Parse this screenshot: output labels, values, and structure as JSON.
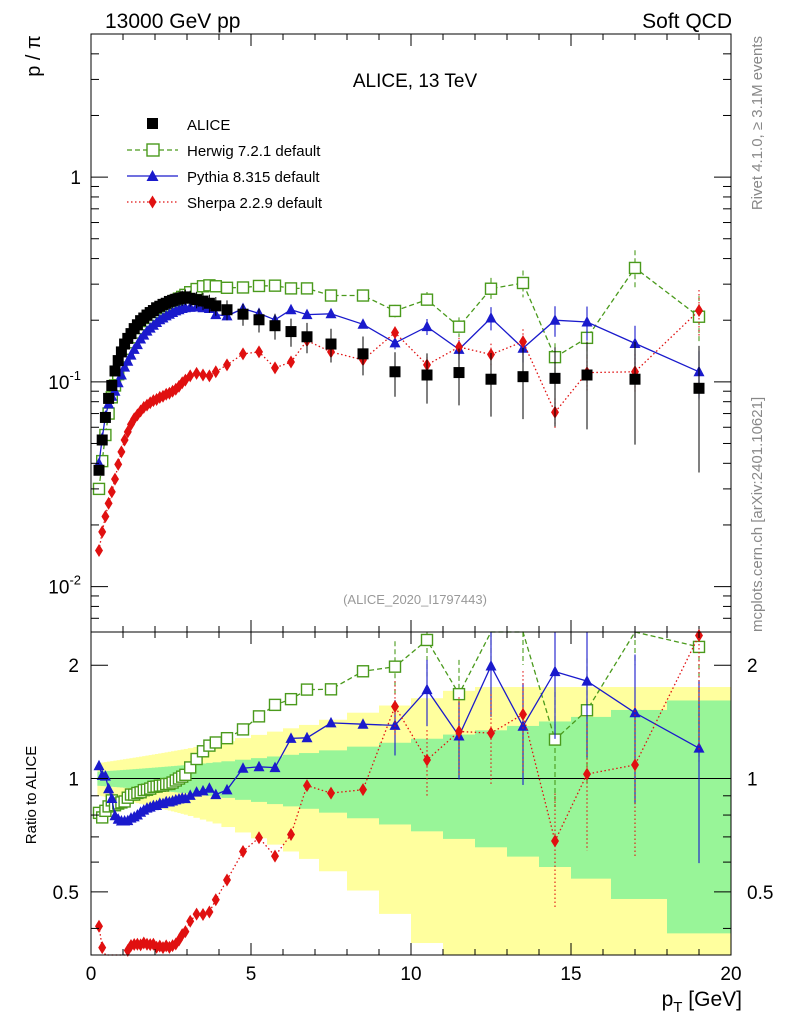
{
  "header": {
    "left": "13000 GeV pp",
    "right": "Soft QCD"
  },
  "side_labels": {
    "rivet": "Rivet 4.1.0, ≥ 3.1M events",
    "mcplots": "mcplots.cern.ch [arXiv:2401.10621]"
  },
  "chart_data": {
    "type": "scatter",
    "title": "ALICE, 13 TeV",
    "analysis": "(ALICE_2020_I1797443)",
    "xlabel": "p_T [GeV]",
    "xlabel_main": "p",
    "xlabel_sub": "T",
    "xlabel_unit": " [GeV]",
    "ylabel": "p / π",
    "ratio_ylabel": "Ratio to ALICE",
    "xlim": [
      0,
      20
    ],
    "ylim": [
      0.006,
      5
    ],
    "ratio_ylim": [
      0.34,
      2.45
    ],
    "xticks": [
      "0",
      "5",
      "10",
      "15",
      "20"
    ],
    "yticks": [
      "10^-2",
      "10^-1",
      "1"
    ],
    "ratio_yticks": [
      "0.5",
      "1",
      "2"
    ],
    "colors": {
      "alice": "#000000",
      "herwig": "#4a9a1c",
      "pythia": "#1a1acc",
      "sherpa": "#e01010",
      "band_green": "#98f598",
      "band_yellow": "#ffff9e"
    },
    "legend": [
      "ALICE",
      "Herwig 7.2.1 default",
      "Pythia 8.315 default",
      "Sherpa 2.2.9 default"
    ],
    "x": [
      0.25,
      0.35,
      0.45,
      0.55,
      0.65,
      0.75,
      0.85,
      0.95,
      1.05,
      1.15,
      1.25,
      1.35,
      1.45,
      1.55,
      1.65,
      1.75,
      1.85,
      1.95,
      2.05,
      2.15,
      2.25,
      2.35,
      2.45,
      2.55,
      2.65,
      2.75,
      2.85,
      2.95,
      3.1,
      3.3,
      3.5,
      3.7,
      3.9,
      4.25,
      4.75,
      5.25,
      5.75,
      6.25,
      6.75,
      7.5,
      8.5,
      9.5,
      10.5,
      11.5,
      12.5,
      13.5,
      14.5,
      15.5,
      17,
      19
    ],
    "series": [
      {
        "name": "ALICE",
        "values": [
          0.037,
          0.052,
          0.067,
          0.083,
          0.096,
          0.113,
          0.127,
          0.14,
          0.153,
          0.163,
          0.172,
          0.182,
          0.19,
          0.199,
          0.205,
          0.212,
          0.218,
          0.223,
          0.23,
          0.234,
          0.239,
          0.242,
          0.247,
          0.25,
          0.253,
          0.255,
          0.257,
          0.26,
          0.256,
          0.252,
          0.248,
          0.242,
          0.235,
          0.225,
          0.214,
          0.201,
          0.188,
          0.176,
          0.166,
          0.153,
          0.137,
          0.112,
          0.108,
          0.111,
          0.103,
          0.106,
          0.104,
          0.108,
          0.103,
          0.093
        ]
      },
      {
        "name": "Herwig 7.2.1 default",
        "values": [
          0.03,
          0.041,
          0.055,
          0.07,
          0.084,
          0.096,
          0.109,
          0.121,
          0.133,
          0.145,
          0.156,
          0.165,
          0.174,
          0.183,
          0.191,
          0.198,
          0.205,
          0.212,
          0.219,
          0.224,
          0.229,
          0.234,
          0.239,
          0.244,
          0.25,
          0.255,
          0.26,
          0.266,
          0.274,
          0.284,
          0.293,
          0.296,
          0.293,
          0.288,
          0.289,
          0.294,
          0.295,
          0.286,
          0.286,
          0.264,
          0.264,
          0.222,
          0.252,
          0.186,
          0.285,
          0.304,
          0.132,
          0.164,
          0.36,
          0.208
        ]
      },
      {
        "name": "Pythia 8.315 default",
        "values": [
          0.04,
          0.053,
          0.068,
          0.078,
          0.085,
          0.09,
          0.099,
          0.108,
          0.118,
          0.126,
          0.135,
          0.144,
          0.152,
          0.162,
          0.169,
          0.177,
          0.183,
          0.189,
          0.195,
          0.201,
          0.205,
          0.21,
          0.214,
          0.218,
          0.222,
          0.225,
          0.228,
          0.23,
          0.231,
          0.232,
          0.23,
          0.228,
          0.213,
          0.21,
          0.228,
          0.216,
          0.201,
          0.225,
          0.213,
          0.215,
          0.191,
          0.155,
          0.186,
          0.144,
          0.205,
          0.146,
          0.2,
          0.196,
          0.154,
          0.112
        ]
      },
      {
        "name": "Sherpa 2.2.9 default",
        "values": [
          0.015,
          0.0185,
          0.022,
          0.0255,
          0.029,
          0.0335,
          0.0395,
          0.0455,
          0.052,
          0.057,
          0.062,
          0.066,
          0.069,
          0.072,
          0.075,
          0.077,
          0.079,
          0.081,
          0.082,
          0.084,
          0.085,
          0.087,
          0.088,
          0.09,
          0.092,
          0.095,
          0.099,
          0.102,
          0.107,
          0.11,
          0.108,
          0.107,
          0.112,
          0.121,
          0.137,
          0.14,
          0.117,
          0.125,
          0.159,
          0.14,
          0.128,
          0.174,
          0.121,
          0.148,
          0.136,
          0.157,
          0.071,
          0.111,
          0.112,
          0.223
        ]
      }
    ]
  }
}
